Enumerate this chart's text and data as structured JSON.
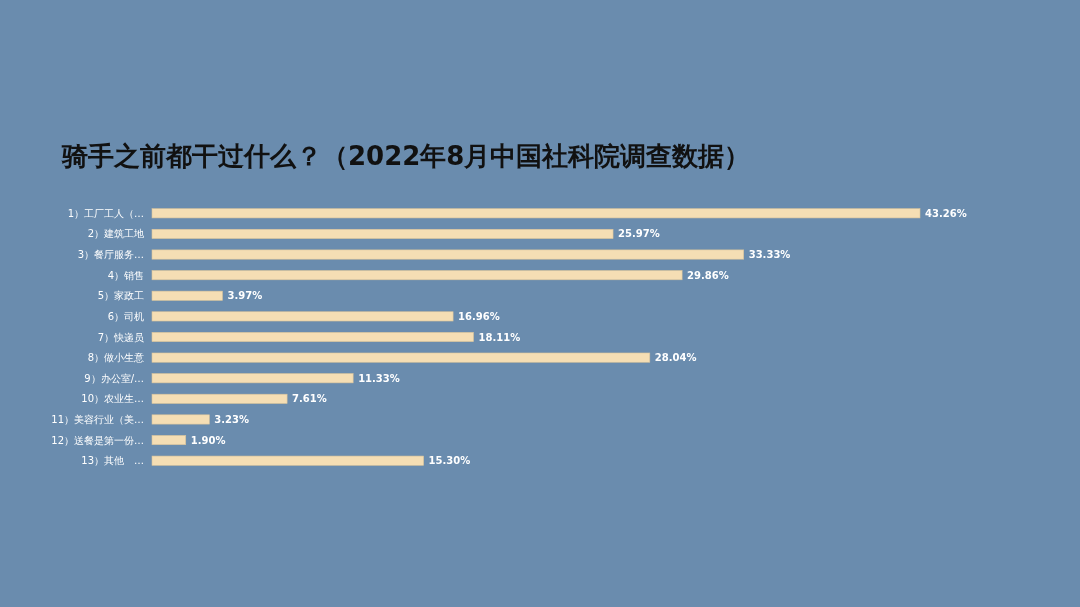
{
  "chart_data": {
    "type": "bar",
    "orientation": "horizontal",
    "title": "骑手之前都干过什么？（2022年8月中国社科院调查数据）",
    "categories": [
      "1）工厂工人（…",
      "2）建筑工地",
      "3）餐厅服务…",
      "4）销售",
      "5）家政工",
      "6）司机",
      "7）快递员",
      "8）做小生意",
      "9）办公室/…",
      "10）农业生…",
      "11）美容行业（美…",
      "12）送餐是第一份…",
      "13）其他　…"
    ],
    "values": [
      43.26,
      25.97,
      33.33,
      29.86,
      3.97,
      16.96,
      18.11,
      28.04,
      11.33,
      7.61,
      3.23,
      1.9,
      15.3
    ],
    "value_labels": [
      "43.26%",
      "25.97%",
      "33.33%",
      "29.86%",
      "3.97%",
      "16.96%",
      "18.11%",
      "28.04%",
      "11.33%",
      "7.61%",
      "3.23%",
      "1.90%",
      "15.30%"
    ],
    "color": "#f5deb4"
  }
}
